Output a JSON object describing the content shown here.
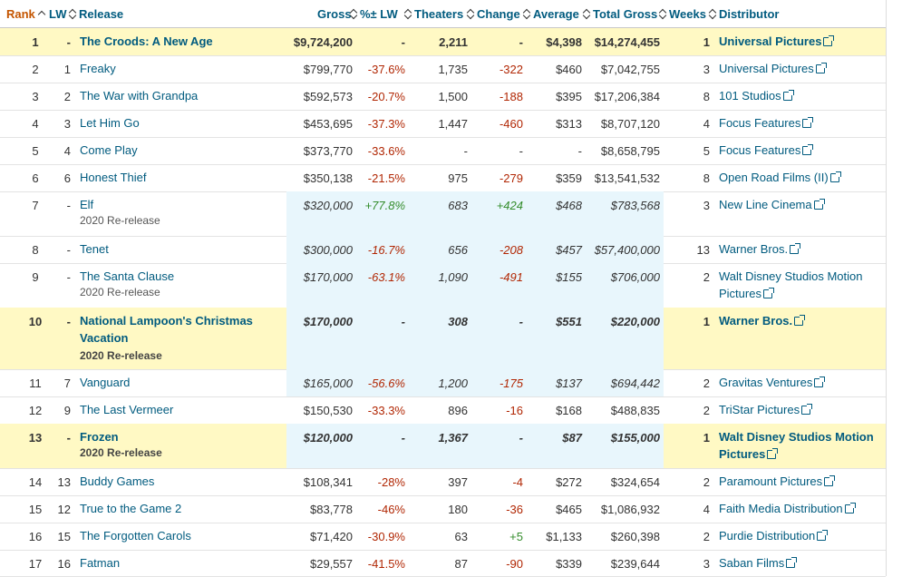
{
  "headers": {
    "rank": "Rank",
    "lw": "LW",
    "release": "Release",
    "gross": "Gross",
    "pct_lw": "%± LW",
    "theaters": "Theaters",
    "change": "Change",
    "average": "Average",
    "total_gross": "Total Gross",
    "weeks": "Weeks",
    "distributor": "Distributor"
  },
  "colors": {
    "link": "#015b7f",
    "rank_header": "#c45500",
    "highlight": "#fff9c4",
    "estimate_bg": "#e8f6fc",
    "negative": "#b12704",
    "positive": "#358d2d"
  },
  "rows": [
    {
      "rank": "1",
      "lw": "-",
      "release": "The Croods: A New Age",
      "sub": "",
      "gross": "$9,724,200",
      "pct": "-",
      "theaters": "2,211",
      "change": "-",
      "average": "$4,398",
      "total": "$14,274,455",
      "weeks": "1",
      "distributor": "Universal Pictures",
      "highlight": true,
      "bold": true,
      "estimate": false
    },
    {
      "rank": "2",
      "lw": "1",
      "release": "Freaky",
      "sub": "",
      "gross": "$799,770",
      "pct": "-37.6%",
      "theaters": "1,735",
      "change": "-322",
      "average": "$460",
      "total": "$7,042,755",
      "weeks": "3",
      "distributor": "Universal Pictures",
      "highlight": false,
      "bold": false,
      "estimate": false
    },
    {
      "rank": "3",
      "lw": "2",
      "release": "The War with Grandpa",
      "sub": "",
      "gross": "$592,573",
      "pct": "-20.7%",
      "theaters": "1,500",
      "change": "-188",
      "average": "$395",
      "total": "$17,206,384",
      "weeks": "8",
      "distributor": "101 Studios",
      "highlight": false,
      "bold": false,
      "estimate": false
    },
    {
      "rank": "4",
      "lw": "3",
      "release": "Let Him Go",
      "sub": "",
      "gross": "$453,695",
      "pct": "-37.3%",
      "theaters": "1,447",
      "change": "-460",
      "average": "$313",
      "total": "$8,707,120",
      "weeks": "4",
      "distributor": "Focus Features",
      "highlight": false,
      "bold": false,
      "estimate": false
    },
    {
      "rank": "5",
      "lw": "4",
      "release": "Come Play",
      "sub": "",
      "gross": "$373,770",
      "pct": "-33.6%",
      "theaters": "-",
      "change": "-",
      "average": "-",
      "total": "$8,658,795",
      "weeks": "5",
      "distributor": "Focus Features",
      "highlight": false,
      "bold": false,
      "estimate": false
    },
    {
      "rank": "6",
      "lw": "6",
      "release": "Honest Thief",
      "sub": "",
      "gross": "$350,138",
      "pct": "-21.5%",
      "theaters": "975",
      "change": "-279",
      "average": "$359",
      "total": "$13,541,532",
      "weeks": "8",
      "distributor": "Open Road Films (II)",
      "highlight": false,
      "bold": false,
      "estimate": false
    },
    {
      "rank": "7",
      "lw": "-",
      "release": "Elf",
      "sub": "2020 Re-release",
      "gross": "$320,000",
      "pct": "+77.8%",
      "theaters": "683",
      "change": "+424",
      "average": "$468",
      "total": "$783,568",
      "weeks": "3",
      "distributor": "New Line Cinema",
      "highlight": false,
      "bold": false,
      "estimate": true
    },
    {
      "rank": "8",
      "lw": "-",
      "release": "Tenet",
      "sub": "",
      "gross": "$300,000",
      "pct": "-16.7%",
      "theaters": "656",
      "change": "-208",
      "average": "$457",
      "total": "$57,400,000",
      "weeks": "13",
      "distributor": "Warner Bros.",
      "highlight": false,
      "bold": false,
      "estimate": true
    },
    {
      "rank": "9",
      "lw": "-",
      "release": "The Santa Clause",
      "sub": "2020 Re-release",
      "gross": "$170,000",
      "pct": "-63.1%",
      "theaters": "1,090",
      "change": "-491",
      "average": "$155",
      "total": "$706,000",
      "weeks": "2",
      "distributor": "Walt Disney Studios Motion Pictures",
      "highlight": false,
      "bold": false,
      "estimate": true
    },
    {
      "rank": "10",
      "lw": "-",
      "release": "National Lampoon's Christmas Vacation",
      "sub": "2020 Re-release",
      "gross": "$170,000",
      "pct": "-",
      "theaters": "308",
      "change": "-",
      "average": "$551",
      "total": "$220,000",
      "weeks": "1",
      "distributor": "Warner Bros.",
      "highlight": true,
      "bold": true,
      "estimate": true
    },
    {
      "rank": "11",
      "lw": "7",
      "release": "Vanguard",
      "sub": "",
      "gross": "$165,000",
      "pct": "-56.6%",
      "theaters": "1,200",
      "change": "-175",
      "average": "$137",
      "total": "$694,442",
      "weeks": "2",
      "distributor": "Gravitas Ventures",
      "highlight": false,
      "bold": false,
      "estimate": true
    },
    {
      "rank": "12",
      "lw": "9",
      "release": "The Last Vermeer",
      "sub": "",
      "gross": "$150,530",
      "pct": "-33.3%",
      "theaters": "896",
      "change": "-16",
      "average": "$168",
      "total": "$488,835",
      "weeks": "2",
      "distributor": "TriStar Pictures",
      "highlight": false,
      "bold": false,
      "estimate": false
    },
    {
      "rank": "13",
      "lw": "-",
      "release": "Frozen",
      "sub": "2020 Re-release",
      "gross": "$120,000",
      "pct": "-",
      "theaters": "1,367",
      "change": "-",
      "average": "$87",
      "total": "$155,000",
      "weeks": "1",
      "distributor": "Walt Disney Studios Motion Pictures",
      "highlight": true,
      "bold": true,
      "estimate": true
    },
    {
      "rank": "14",
      "lw": "13",
      "release": "Buddy Games",
      "sub": "",
      "gross": "$108,341",
      "pct": "-28%",
      "theaters": "397",
      "change": "-4",
      "average": "$272",
      "total": "$324,654",
      "weeks": "2",
      "distributor": "Paramount Pictures",
      "highlight": false,
      "bold": false,
      "estimate": false
    },
    {
      "rank": "15",
      "lw": "12",
      "release": "True to the Game 2",
      "sub": "",
      "gross": "$83,778",
      "pct": "-46%",
      "theaters": "180",
      "change": "-36",
      "average": "$465",
      "total": "$1,086,932",
      "weeks": "4",
      "distributor": "Faith Media Distribution",
      "highlight": false,
      "bold": false,
      "estimate": false
    },
    {
      "rank": "16",
      "lw": "15",
      "release": "The Forgotten Carols",
      "sub": "",
      "gross": "$71,420",
      "pct": "-30.9%",
      "theaters": "63",
      "change": "+5",
      "average": "$1,133",
      "total": "$260,398",
      "weeks": "2",
      "distributor": "Purdie Distribution",
      "highlight": false,
      "bold": false,
      "estimate": false
    },
    {
      "rank": "17",
      "lw": "16",
      "release": "Fatman",
      "sub": "",
      "gross": "$29,557",
      "pct": "-41.5%",
      "theaters": "87",
      "change": "-90",
      "average": "$339",
      "total": "$239,644",
      "weeks": "3",
      "distributor": "Saban Films",
      "highlight": false,
      "bold": false,
      "estimate": false
    }
  ]
}
